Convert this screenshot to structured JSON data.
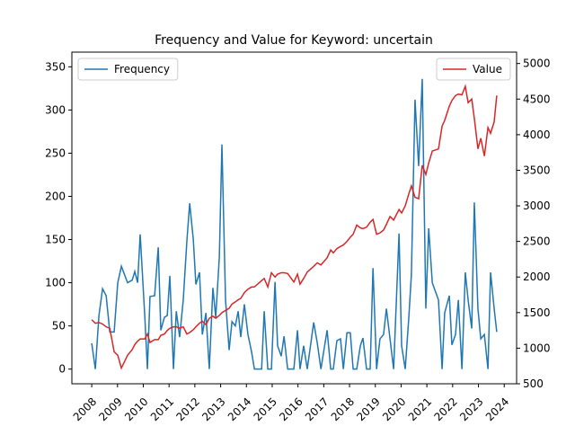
{
  "chart_data": {
    "type": "line",
    "title": "Frequency and Value for Keyword: uncertain",
    "x": [
      2008.0,
      2008.14,
      2008.28,
      2008.42,
      2008.56,
      2008.7,
      2008.87,
      2009.01,
      2009.15,
      2009.39,
      2009.57,
      2009.67,
      2009.78,
      2009.88,
      2010.06,
      2010.16,
      2010.26,
      2010.44,
      2010.58,
      2010.68,
      2010.82,
      2010.93,
      2011.03,
      2011.17,
      2011.28,
      2011.41,
      2011.55,
      2011.69,
      2011.8,
      2011.94,
      2012.04,
      2012.18,
      2012.29,
      2012.43,
      2012.56,
      2012.7,
      2012.81,
      2012.95,
      2013.05,
      2013.19,
      2013.33,
      2013.44,
      2013.57,
      2013.68,
      2013.78,
      2013.92,
      2014.06,
      2014.2,
      2014.31,
      2014.59,
      2014.69,
      2014.83,
      2014.97,
      2015.11,
      2015.21,
      2015.35,
      2015.46,
      2015.6,
      2015.84,
      2015.98,
      2016.08,
      2016.22,
      2016.36,
      2016.61,
      2016.75,
      2016.89,
      2017.13,
      2017.27,
      2017.37,
      2017.51,
      2017.65,
      2017.76,
      2017.9,
      2018.03,
      2018.14,
      2018.28,
      2018.42,
      2018.52,
      2018.66,
      2018.8,
      2018.91,
      2019.05,
      2019.18,
      2019.32,
      2019.43,
      2019.57,
      2019.71,
      2019.92,
      2020.02,
      2020.16,
      2020.3,
      2020.4,
      2020.54,
      2020.68,
      2020.82,
      2020.96,
      2021.07,
      2021.21,
      2021.45,
      2021.59,
      2021.69,
      2021.87,
      2021.97,
      2022.11,
      2022.22,
      2022.36,
      2022.49,
      2022.6,
      2022.74,
      2022.84,
      2022.98,
      2023.09,
      2023.23,
      2023.37,
      2023.47,
      2023.61,
      2023.71
    ],
    "series": [
      {
        "name": "Frequency",
        "color": "#1f77b4",
        "axis": "y",
        "values": [
          30,
          0,
          62,
          93,
          85,
          43,
          43,
          100,
          119,
          100,
          103,
          113,
          100,
          156,
          60,
          0,
          84,
          85,
          141,
          45,
          60,
          62,
          108,
          0,
          67,
          37,
          80,
          148,
          192,
          150,
          98,
          112,
          40,
          65,
          0,
          94,
          60,
          130,
          260,
          80,
          22,
          55,
          50,
          67,
          37,
          75,
          40,
          20,
          0,
          0,
          67,
          0,
          0,
          101,
          27,
          15,
          38,
          0,
          0,
          45,
          0,
          27,
          0,
          54,
          30,
          0,
          45,
          0,
          0,
          33,
          35,
          0,
          42,
          42,
          0,
          0,
          27,
          36,
          0,
          0,
          117,
          0,
          35,
          40,
          70,
          35,
          0,
          157,
          27,
          0,
          60,
          110,
          312,
          235,
          336,
          70,
          163,
          100,
          80,
          0,
          65,
          85,
          28,
          40,
          80,
          0,
          112,
          80,
          47,
          193,
          70,
          35,
          40,
          0,
          112,
          70,
          43
        ]
      },
      {
        "name": "Value",
        "color": "#d62728",
        "axis": "y2",
        "values": [
          1400,
          1350,
          1360,
          1340,
          1300,
          1280,
          950,
          900,
          720,
          900,
          980,
          1050,
          1100,
          1130,
          1130,
          1200,
          1080,
          1120,
          1120,
          1180,
          1200,
          1250,
          1280,
          1300,
          1300,
          1280,
          1300,
          1200,
          1220,
          1260,
          1300,
          1350,
          1380,
          1330,
          1420,
          1450,
          1420,
          1460,
          1500,
          1530,
          1560,
          1620,
          1650,
          1680,
          1700,
          1780,
          1830,
          1860,
          1860,
          1950,
          1980,
          1860,
          2060,
          2000,
          2040,
          2060,
          2060,
          2050,
          1930,
          2040,
          1900,
          1980,
          2070,
          2150,
          2200,
          2170,
          2270,
          2380,
          2340,
          2400,
          2430,
          2450,
          2500,
          2560,
          2600,
          2730,
          2690,
          2680,
          2700,
          2770,
          2810,
          2600,
          2620,
          2660,
          2740,
          2850,
          2800,
          2950,
          2900,
          3000,
          3170,
          3280,
          3120,
          3100,
          3570,
          3440,
          3600,
          3770,
          3800,
          4120,
          4200,
          4400,
          4480,
          4550,
          4570,
          4560,
          4680,
          4450,
          4500,
          4230,
          3800,
          3950,
          3700,
          4100,
          4020,
          4180,
          4550
        ]
      }
    ],
    "xlim": [
      2007.23,
      2024.48
    ],
    "xticks": [
      2008,
      2009,
      2010,
      2011,
      2012,
      2013,
      2014,
      2015,
      2016,
      2017,
      2018,
      2019,
      2020,
      2021,
      2022,
      2023,
      2024
    ],
    "ylim": [
      -17,
      367
    ],
    "yticks": [
      0,
      50,
      100,
      150,
      200,
      250,
      300,
      350
    ],
    "y2lim": [
      500,
      5160
    ],
    "y2ticks": [
      500,
      1000,
      1500,
      2000,
      2500,
      3000,
      3500,
      4000,
      4500,
      5000
    ],
    "legend": {
      "Frequency": "upper left",
      "Value": "upper right"
    }
  }
}
